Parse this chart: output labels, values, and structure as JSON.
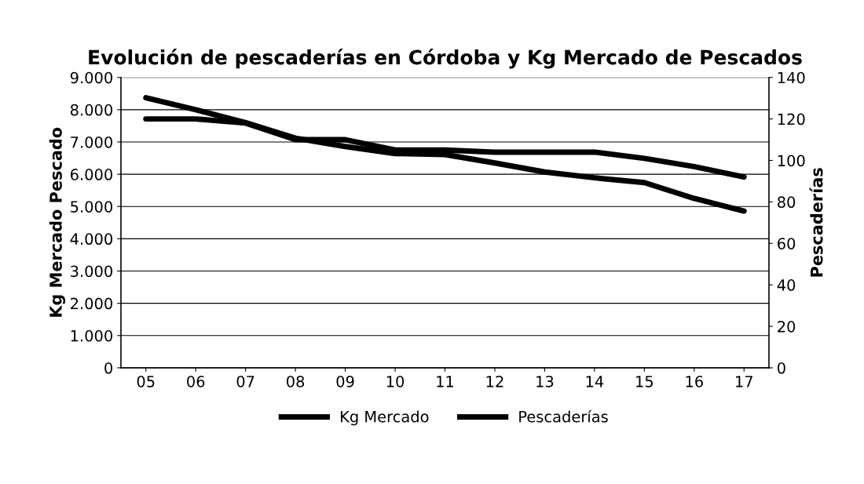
{
  "chart_data": {
    "type": "line",
    "title": "Evolución de pescaderías en Córdoba y Kg Mercado de Pescados",
    "ylabel": "Kg Mercado Pescado",
    "y2label": "Pescaderías",
    "categories": [
      "05",
      "06",
      "07",
      "08",
      "09",
      "10",
      "11",
      "12",
      "13",
      "14",
      "15",
      "16",
      "17"
    ],
    "series": [
      {
        "name": "Kg Mercado",
        "color": "#000000",
        "values": [
          8370,
          8000,
          7600,
          7120,
          6860,
          6640,
          6610,
          6350,
          6070,
          5890,
          5740,
          5250,
          4860
        ]
      },
      {
        "name": "Pescaderías",
        "color": "#000000",
        "axis": "y2",
        "values": [
          120,
          120,
          118,
          110,
          110,
          105,
          105,
          104,
          104,
          104,
          101,
          97,
          92
        ]
      }
    ],
    "ylim": [
      0,
      9000
    ],
    "yticks": [
      {
        "value": 0,
        "label": "0"
      },
      {
        "value": 1000,
        "label": "1.000"
      },
      {
        "value": 2000,
        "label": "2.000"
      },
      {
        "value": 3000,
        "label": "3.000"
      },
      {
        "value": 4000,
        "label": "4.000"
      },
      {
        "value": 5000,
        "label": "5.000"
      },
      {
        "value": 6000,
        "label": "6.000"
      },
      {
        "value": 7000,
        "label": "7.000"
      },
      {
        "value": 8000,
        "label": "8.000"
      },
      {
        "value": 9000,
        "label": "9.000"
      }
    ],
    "y2lim": [
      0,
      140
    ],
    "y2ticks": [
      0,
      20,
      40,
      60,
      80,
      100,
      120,
      140
    ],
    "grid": "y",
    "legend": "bottom",
    "line_style": "solid"
  }
}
